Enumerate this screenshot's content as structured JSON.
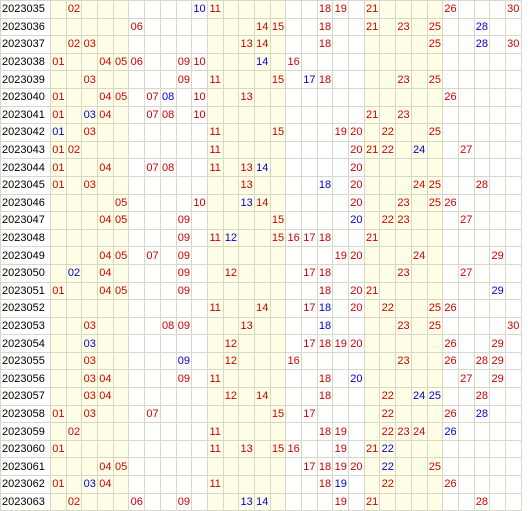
{
  "colors": {
    "red": "#cc0000",
    "blue": "#0000cc",
    "shade": "#ffffe8",
    "border": "#d8d8c8"
  },
  "shaded_columns": [
    1,
    2,
    3,
    4,
    5,
    11,
    12,
    13,
    14,
    15,
    21,
    22,
    23,
    24,
    25
  ],
  "rows": [
    {
      "period": "2023035",
      "red": [
        2,
        11,
        18,
        19,
        21,
        26,
        30
      ],
      "blue": [
        10
      ]
    },
    {
      "period": "2023036",
      "red": [
        6,
        14,
        15,
        18,
        21,
        23,
        25
      ],
      "blue": [
        28
      ]
    },
    {
      "period": "2023037",
      "red": [
        2,
        3,
        13,
        14,
        18,
        25,
        30
      ],
      "blue": [
        28
      ]
    },
    {
      "period": "2023038",
      "red": [
        1,
        4,
        5,
        6,
        9,
        10,
        16
      ],
      "blue": [
        14
      ]
    },
    {
      "period": "2023039",
      "red": [
        3,
        9,
        11,
        15,
        18,
        23,
        25
      ],
      "blue": [
        17
      ]
    },
    {
      "period": "2023040",
      "red": [
        1,
        4,
        5,
        7,
        10,
        13,
        26
      ],
      "blue": [
        8
      ]
    },
    {
      "period": "2023041",
      "red": [
        1,
        4,
        7,
        8,
        10,
        21,
        23
      ],
      "blue": [
        3
      ]
    },
    {
      "period": "2023042",
      "red": [
        3,
        11,
        15,
        19,
        20,
        22,
        25
      ],
      "blue": [
        1
      ]
    },
    {
      "period": "2023043",
      "red": [
        1,
        2,
        11,
        20,
        21,
        22,
        27
      ],
      "blue": [
        24
      ]
    },
    {
      "period": "2023044",
      "red": [
        1,
        4,
        7,
        8,
        11,
        13,
        20
      ],
      "blue": [
        14
      ]
    },
    {
      "period": "2023045",
      "red": [
        1,
        3,
        13,
        20,
        24,
        25,
        28
      ],
      "blue": [
        18
      ]
    },
    {
      "period": "2023046",
      "red": [
        5,
        10,
        14,
        20,
        23,
        25,
        26
      ],
      "blue": [
        13
      ]
    },
    {
      "period": "2023047",
      "red": [
        4,
        5,
        9,
        15,
        22,
        23,
        27
      ],
      "blue": [
        20
      ]
    },
    {
      "period": "2023048",
      "red": [
        9,
        11,
        15,
        16,
        17,
        18,
        21
      ],
      "blue": [
        12
      ]
    },
    {
      "period": "2023049",
      "red": [
        4,
        5,
        7,
        9,
        19,
        20,
        24,
        29
      ],
      "blue": []
    },
    {
      "period": "2023050",
      "red": [
        4,
        9,
        12,
        17,
        18,
        23,
        27
      ],
      "blue": [
        2
      ]
    },
    {
      "period": "2023051",
      "red": [
        1,
        4,
        5,
        9,
        18,
        20,
        21
      ],
      "blue": [
        29
      ]
    },
    {
      "period": "2023052",
      "red": [
        11,
        14,
        17,
        20,
        22,
        25,
        26
      ],
      "blue": [
        18
      ]
    },
    {
      "period": "2023053",
      "red": [
        3,
        8,
        9,
        13,
        23,
        25,
        30
      ],
      "blue": [
        18
      ]
    },
    {
      "period": "2023054",
      "red": [
        12,
        17,
        18,
        19,
        20,
        26,
        29
      ],
      "blue": [
        3
      ]
    },
    {
      "period": "2023055",
      "red": [
        3,
        12,
        16,
        23,
        26,
        28,
        29
      ],
      "blue": [
        9
      ]
    },
    {
      "period": "2023056",
      "red": [
        3,
        4,
        9,
        11,
        18,
        27,
        29
      ],
      "blue": [
        20
      ]
    },
    {
      "period": "2023057",
      "red": [
        3,
        4,
        12,
        14,
        18,
        22,
        28
      ],
      "blue": [
        24,
        25
      ]
    },
    {
      "period": "2023058",
      "red": [
        1,
        3,
        7,
        15,
        17,
        22,
        26
      ],
      "blue": [
        28
      ]
    },
    {
      "period": "2023059",
      "red": [
        2,
        11,
        18,
        19,
        22,
        23,
        24
      ],
      "blue": [
        26
      ]
    },
    {
      "period": "2023060",
      "red": [
        1,
        11,
        13,
        15,
        16,
        19,
        21
      ],
      "blue": [
        22
      ]
    },
    {
      "period": "2023061",
      "red": [
        4,
        5,
        17,
        18,
        19,
        20,
        25
      ],
      "blue": [
        22
      ]
    },
    {
      "period": "2023062",
      "red": [
        1,
        4,
        11,
        18,
        22,
        26
      ],
      "blue": [
        3,
        19
      ]
    },
    {
      "period": "2023063",
      "red": [
        2,
        6,
        9,
        19,
        21,
        28
      ],
      "blue": [
        13,
        14
      ]
    }
  ]
}
